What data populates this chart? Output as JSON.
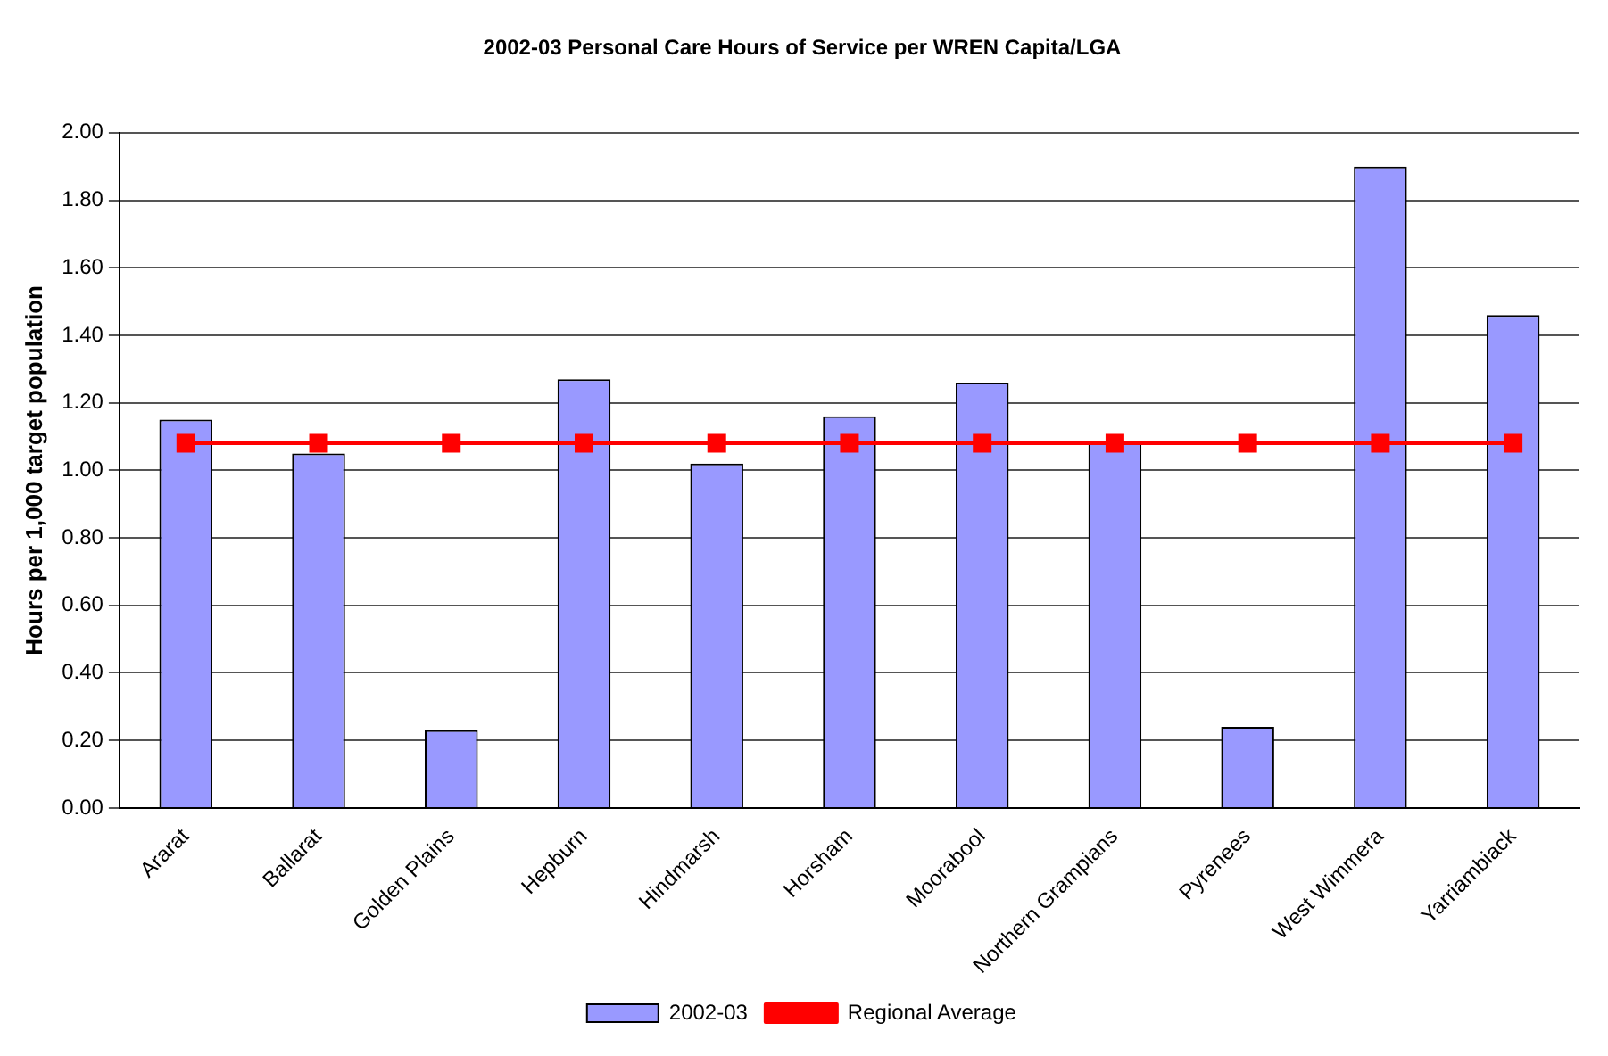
{
  "chart_data": {
    "type": "bar",
    "title": "2002-03 Personal Care Hours of Service per WREN Capita/LGA",
    "ylabel": "Hours per 1,000 target population",
    "categories": [
      "Ararat",
      "Ballarat",
      "Golden Plains",
      "Hepburn",
      "Hindmarsh",
      "Horsham",
      "Moorabool",
      "Northern Grampians",
      "Pyrenees",
      "West Wimmera",
      "Yarriambiack"
    ],
    "series": [
      {
        "name": "2002-03",
        "color": "#9999ff",
        "values": [
          1.15,
          1.05,
          0.23,
          1.27,
          1.02,
          1.16,
          1.26,
          1.08,
          0.24,
          1.9,
          1.46
        ]
      },
      {
        "name": "Regional Average",
        "type": "line",
        "color": "#ff0000",
        "marker": "square",
        "values": [
          1.08,
          1.08,
          1.08,
          1.08,
          1.08,
          1.08,
          1.08,
          1.08,
          1.08,
          1.08,
          1.08
        ]
      }
    ],
    "ylim": [
      0,
      2
    ],
    "yticks": [
      {
        "value": 0,
        "label": "0.00"
      },
      {
        "value": 0.2,
        "label": "0.20"
      },
      {
        "value": 0.4,
        "label": "0.40"
      },
      {
        "value": 0.6,
        "label": "0.60"
      },
      {
        "value": 0.8,
        "label": "0.80"
      },
      {
        "value": 1,
        "label": "1.00"
      },
      {
        "value": 1.2,
        "label": "1.20"
      },
      {
        "value": 1.4,
        "label": "1.40"
      },
      {
        "value": 1.6,
        "label": "1.60"
      },
      {
        "value": 1.8,
        "label": "1.80"
      },
      {
        "value": 2,
        "label": "2.00"
      }
    ],
    "grid": "y",
    "legend": "bottom"
  }
}
